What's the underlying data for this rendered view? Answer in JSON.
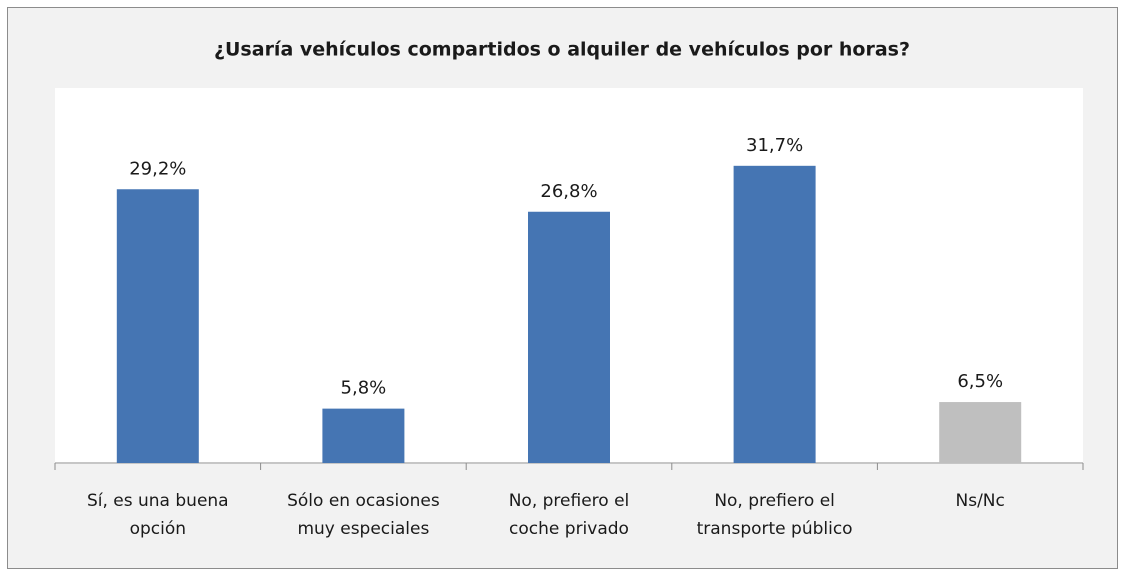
{
  "chart_data": {
    "type": "bar",
    "title": "¿Usaría vehículos compartidos o alquiler de vehículos por horas?",
    "categories": [
      [
        "Sí, es una buena",
        "opción"
      ],
      [
        "Sólo en ocasiones",
        "muy especiales"
      ],
      [
        "No, prefiero el",
        "coche privado"
      ],
      [
        "No, prefiero el",
        "transporte público"
      ],
      [
        "Ns/Nc"
      ]
    ],
    "values": [
      29.2,
      5.8,
      26.8,
      31.7,
      6.5
    ],
    "value_labels": [
      "29,2%",
      "5,8%",
      "26,8%",
      "31,7%",
      "6,5%"
    ],
    "colors": [
      "#4575b3",
      "#4575b3",
      "#4575b3",
      "#4575b3",
      "#bfbfbf"
    ],
    "ylim": [
      0,
      40
    ]
  }
}
